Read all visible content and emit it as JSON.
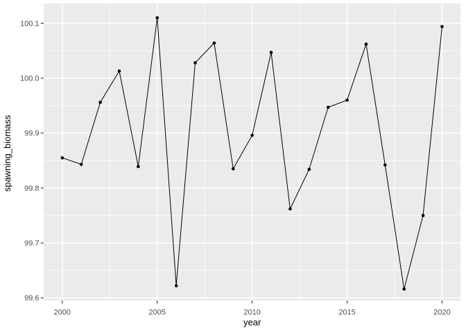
{
  "chart_data": {
    "type": "line",
    "title": "",
    "xlabel": "year",
    "ylabel": "spawning_biomass",
    "series": [
      {
        "name": "spawning_biomass",
        "x": [
          2000,
          2001,
          2002,
          2003,
          2004,
          2005,
          2006,
          2007,
          2008,
          2009,
          2010,
          2011,
          2012,
          2013,
          2014,
          2015,
          2016,
          2017,
          2018,
          2019,
          2020
        ],
        "y": [
          99.855,
          99.843,
          99.956,
          100.013,
          99.839,
          100.11,
          99.622,
          100.028,
          100.064,
          99.835,
          99.896,
          100.047,
          99.762,
          99.834,
          99.947,
          99.96,
          100.062,
          99.842,
          99.616,
          99.75,
          100.094
        ]
      }
    ],
    "marker": "point",
    "legend": false,
    "grid": true,
    "xlim": [
      1999.02,
      2020.98
    ],
    "ylim": [
      99.595,
      100.136
    ],
    "xticks": [
      2000,
      2005,
      2010,
      2015,
      2020
    ],
    "xtick_labels": [
      "2000",
      "2005",
      "2010",
      "2015",
      "2020"
    ],
    "yticks": [
      99.6,
      99.7,
      99.8,
      99.9,
      100.0,
      100.1
    ],
    "ytick_labels": [
      "99.6",
      "99.7",
      "99.8",
      "99.9",
      "100.0",
      "100.1"
    ],
    "x_minor_ticks": [
      2002.5,
      2007.5,
      2012.5,
      2017.5
    ],
    "y_minor_ticks": [
      99.65,
      99.75,
      99.85,
      99.95,
      100.05
    ],
    "style": {
      "panel_bg": "#EBEBEB",
      "grid_major_color": "#FFFFFF",
      "grid_minor_color": "#FFFFFF",
      "line_color": "#000000",
      "point_color": "#000000",
      "tick_mark_color": "#333333",
      "tick_label_color": "#4D4D4D",
      "axis_title_color": "#000000",
      "outer_bg": "#FFFFFF"
    }
  }
}
